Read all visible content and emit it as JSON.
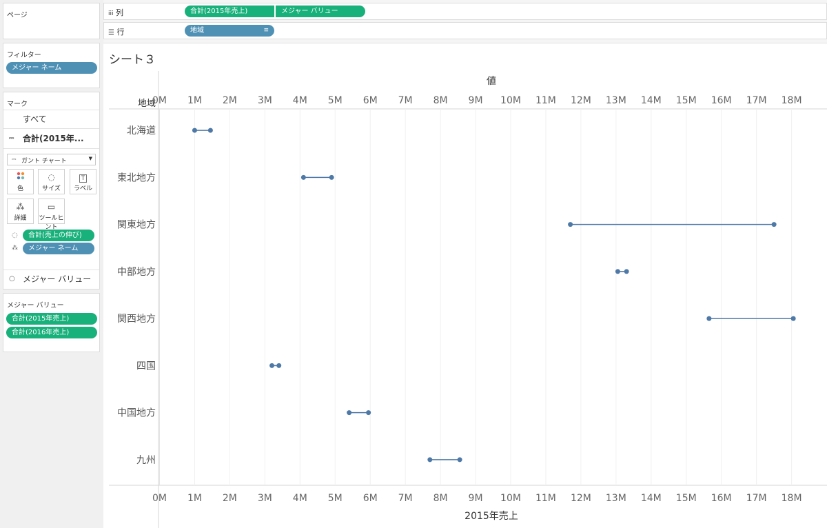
{
  "pages_card": {
    "title": "ページ"
  },
  "filters_card": {
    "title": "フィルター",
    "pills": [
      "メジャー ネーム"
    ]
  },
  "marks_card": {
    "title": "マーク",
    "all_label": "すべて",
    "selected_label": "合計(2015年...",
    "mark_type": "ガント チャート",
    "buttons": {
      "color": "色",
      "size": "サイズ",
      "label": "ラベル",
      "detail": "詳細",
      "tooltip": "ツールヒント"
    },
    "size_pill": "合計(売上の伸び)",
    "detail_pill": "メジャー ネーム",
    "measure_values_row": "メジャー バリュー"
  },
  "measure_values_card": {
    "title": "メジャー バリュー",
    "pills": [
      "合計(2015年売上)",
      "合計(2016年売上)"
    ]
  },
  "shelves": {
    "columns": {
      "label": "列",
      "pills": [
        "合計(2015年売上)",
        "メジャー バリュー"
      ]
    },
    "rows": {
      "label": "行",
      "pills": [
        "地域"
      ]
    }
  },
  "sheet": {
    "title": "シート３"
  },
  "chart_data": {
    "type": "gantt",
    "row_header": "地域",
    "top_axis_title": "値",
    "bottom_axis_title": "2015年売上",
    "tick_labels": [
      "0M",
      "1M",
      "2M",
      "3M",
      "4M",
      "5M",
      "6M",
      "7M",
      "8M",
      "9M",
      "10M",
      "11M",
      "12M",
      "13M",
      "14M",
      "15M",
      "16M",
      "17M",
      "18M"
    ],
    "xlim": [
      0,
      18.9
    ],
    "grid": true,
    "categories": [
      "北海道",
      "東北地方",
      "関東地方",
      "中部地方",
      "関西地方",
      "四国",
      "中国地方",
      "九州"
    ],
    "series": [
      {
        "name": "合計(2015年売上)",
        "values": [
          1.0,
          4.1,
          11.7,
          13.05,
          15.65,
          3.2,
          5.4,
          7.7
        ]
      },
      {
        "name": "合計(2016年売上)",
        "values": [
          1.45,
          4.9,
          17.5,
          13.3,
          18.05,
          3.4,
          5.95,
          8.55
        ]
      }
    ],
    "color": "#4e79a7"
  }
}
